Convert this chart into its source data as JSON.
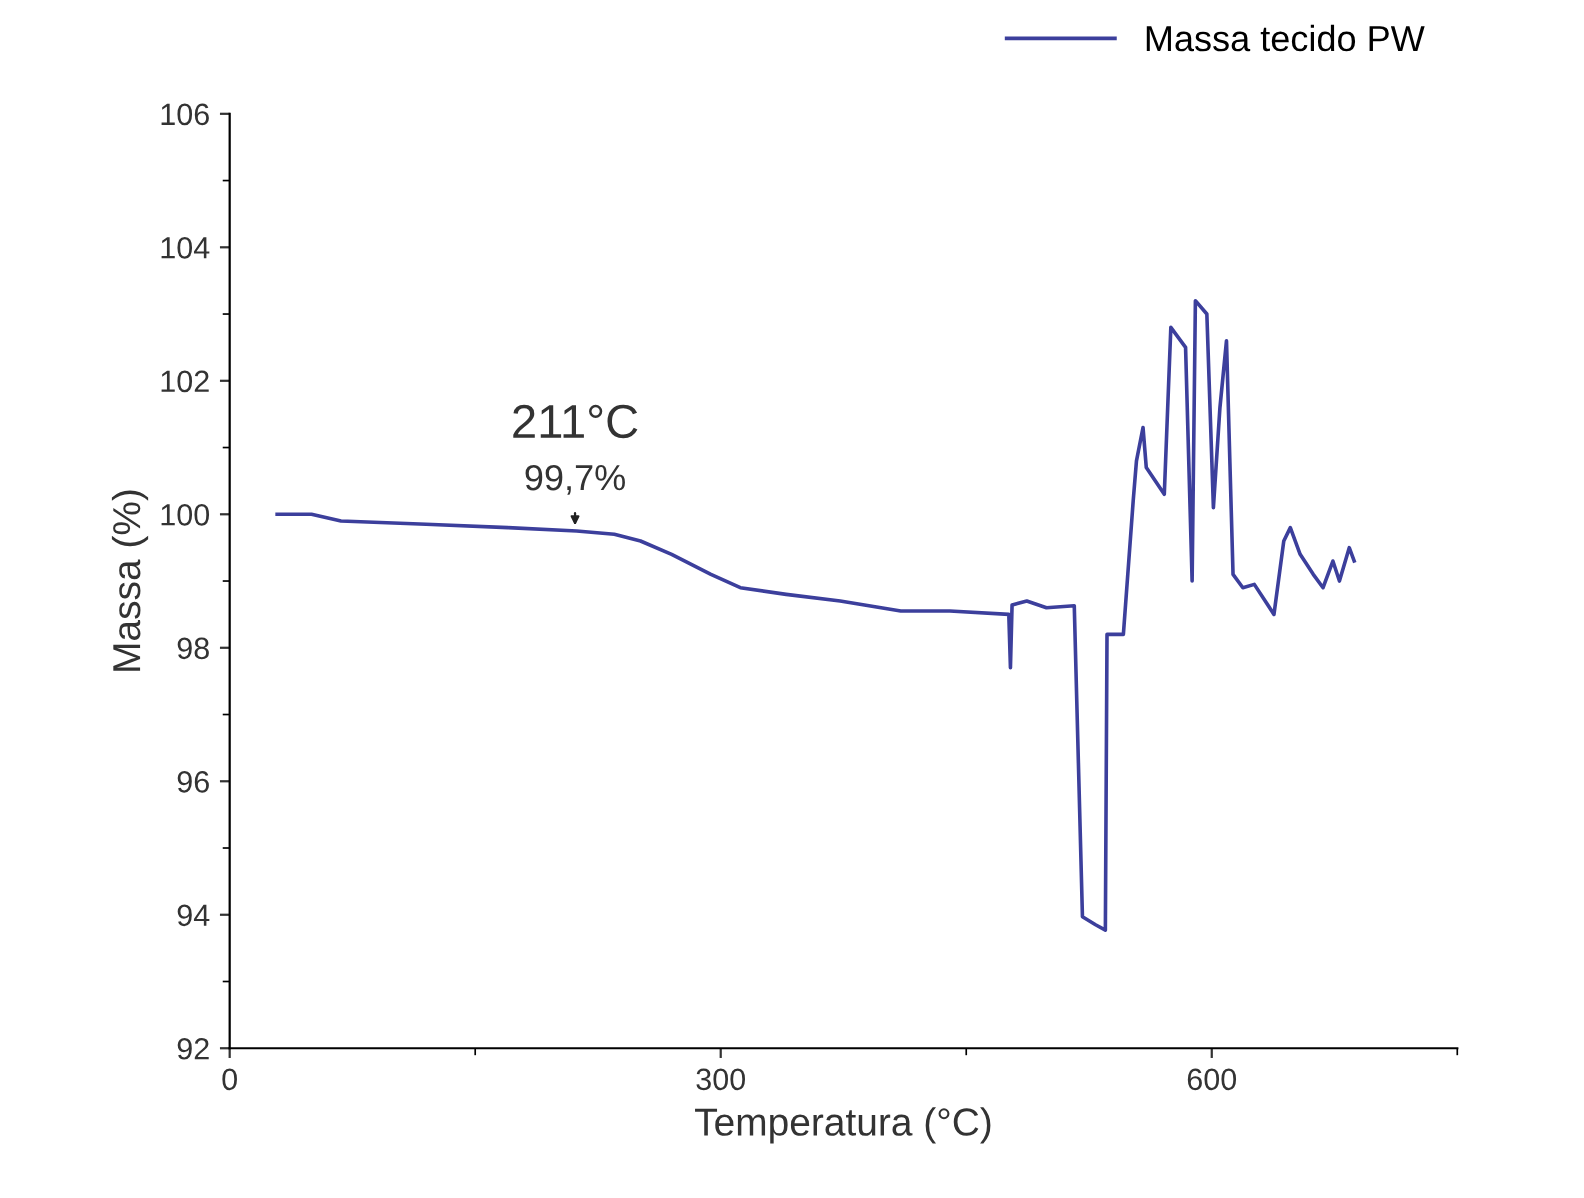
{
  "chart_data": {
    "type": "line",
    "xlabel": "Temperatura (°C)",
    "ylabel": "Massa (%)",
    "xlim": [
      0,
      750
    ],
    "ylim": [
      92,
      106
    ],
    "xticks": [
      0,
      300,
      600
    ],
    "yticks": [
      92,
      94,
      96,
      98,
      100,
      102,
      104,
      106
    ],
    "grid": false,
    "legend": "top right",
    "series": [
      {
        "name": "Massa tecido PW",
        "color": "#3c3f9c",
        "x": [
          29,
          50,
          68,
          120,
          170,
          212,
          235,
          251,
          270,
          294,
          312,
          340,
          373,
          410,
          440,
          476,
          477,
          478,
          487,
          499,
          516,
          521,
          529,
          535,
          536,
          546,
          552,
          554,
          558,
          560,
          571,
          575,
          584,
          588,
          590,
          597,
          601,
          605,
          609,
          613,
          619,
          626,
          638,
          644,
          648,
          654,
          662,
          668,
          674,
          678,
          684,
          687
        ],
        "values": [
          100.0,
          100.0,
          99.9,
          99.85,
          99.8,
          99.75,
          99.7,
          99.6,
          99.4,
          99.1,
          98.9,
          98.8,
          98.7,
          98.55,
          98.55,
          98.5,
          97.7,
          98.64,
          98.7,
          98.6,
          98.63,
          93.97,
          93.85,
          93.77,
          98.2,
          98.2,
          100.2,
          100.8,
          101.3,
          100.7,
          100.3,
          102.8,
          102.5,
          99.0,
          103.2,
          103.0,
          100.1,
          101.6,
          102.6,
          99.1,
          98.9,
          98.95,
          98.5,
          99.6,
          99.8,
          99.4,
          99.1,
          98.9,
          99.3,
          99.0,
          99.5,
          99.3
        ]
      }
    ],
    "annotations": [
      {
        "text": "211°C",
        "x": 211,
        "y": 99.75
      },
      {
        "text": "99,7%",
        "x": 211,
        "y": 99.75
      }
    ]
  }
}
